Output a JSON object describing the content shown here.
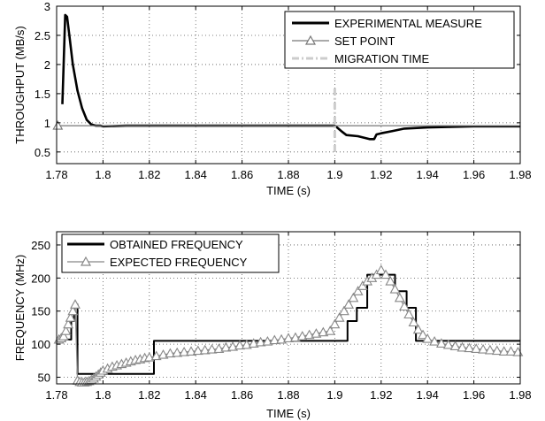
{
  "chart_data": [
    {
      "type": "line",
      "xlabel": "TIME (s)",
      "ylabel": "THROUGHPUT (MB/s)",
      "xlim": [
        1.78,
        1.98
      ],
      "ylim": [
        0.3,
        3
      ],
      "xticks": [
        1.78,
        1.8,
        1.82,
        1.84,
        1.86,
        1.88,
        1.9,
        1.92,
        1.94,
        1.96,
        1.98
      ],
      "xtick_labels": [
        "1.78",
        "1.8",
        "1.82",
        "1.84",
        "1.86",
        "1.88",
        "1.9",
        "1.92",
        "1.94",
        "1.96",
        "1.98"
      ],
      "yticks": [
        0.5,
        1,
        1.5,
        2,
        2.5,
        3
      ],
      "ytick_labels": [
        "0.5",
        "1",
        "1.5",
        "2",
        "2.5",
        "3"
      ],
      "grid": "dotted",
      "legend_position": "top-right",
      "series": [
        {
          "name": "EXPERIMENTAL MEASURE",
          "color": "#000000",
          "style": "solid-thick",
          "x": [
            1.7825,
            1.7837,
            1.7845,
            1.7855,
            1.787,
            1.789,
            1.791,
            1.793,
            1.795,
            1.797,
            1.799,
            1.8,
            1.81,
            1.82,
            1.84,
            1.86,
            1.88,
            1.9,
            1.901,
            1.903,
            1.905,
            1.91,
            1.915,
            1.917,
            1.918,
            1.92,
            1.925,
            1.93,
            1.94,
            1.95,
            1.96,
            1.98
          ],
          "y": [
            1.32,
            2.85,
            2.82,
            2.5,
            2.0,
            1.55,
            1.25,
            1.05,
            0.97,
            0.95,
            0.95,
            0.94,
            0.95,
            0.95,
            0.95,
            0.95,
            0.95,
            0.95,
            0.92,
            0.85,
            0.79,
            0.77,
            0.72,
            0.72,
            0.8,
            0.82,
            0.86,
            0.9,
            0.92,
            0.93,
            0.94,
            0.94
          ]
        },
        {
          "name": "SET POINT",
          "color": "#777777",
          "style": "solid-triangle-markers",
          "x": [
            1.78,
            1.98
          ],
          "y": [
            0.95,
            0.95
          ],
          "markers_x": [
            1.7805
          ]
        },
        {
          "name": "MIGRATION TIME",
          "color": "#cccccc",
          "style": "dash-dot",
          "x": [
            1.9,
            1.9
          ],
          "y": [
            0.5,
            1.6
          ]
        }
      ]
    },
    {
      "type": "line",
      "xlabel": "TIME (s)",
      "ylabel": "FREQUENCY (MHz)",
      "xlim": [
        1.78,
        1.98
      ],
      "ylim": [
        40,
        270
      ],
      "xticks": [
        1.78,
        1.8,
        1.82,
        1.84,
        1.86,
        1.88,
        1.9,
        1.92,
        1.94,
        1.96,
        1.98
      ],
      "xtick_labels": [
        "1.78",
        "1.8",
        "1.82",
        "1.84",
        "1.86",
        "1.88",
        "1.9",
        "1.92",
        "1.94",
        "1.96",
        "1.98"
      ],
      "yticks": [
        50,
        100,
        150,
        200,
        250
      ],
      "ytick_labels": [
        "50",
        "100",
        "150",
        "200",
        "250"
      ],
      "grid": "dotted",
      "legend_position": "top-left",
      "series": [
        {
          "name": "OBTAINED FREQUENCY",
          "color": "#000000",
          "style": "solid-step",
          "x": [
            1.78,
            1.783,
            1.783,
            1.7863,
            1.7863,
            1.7875,
            1.7875,
            1.789,
            1.789,
            1.822,
            1.822,
            1.9055,
            1.9055,
            1.9095,
            1.9095,
            1.914,
            1.914,
            1.926,
            1.926,
            1.931,
            1.931,
            1.935,
            1.935,
            1.98
          ],
          "y": [
            107,
            107,
            107,
            107,
            135,
            135,
            160,
            160,
            55,
            55,
            105,
            105,
            135,
            135,
            155,
            155,
            205,
            205,
            180,
            180,
            155,
            155,
            105,
            105
          ]
        },
        {
          "name": "EXPECTED FREQUENCY",
          "color": "#888888",
          "style": "solid-triangle-markers",
          "x": [
            1.781,
            1.782,
            1.783,
            1.784,
            1.785,
            1.786,
            1.787,
            1.788,
            1.789,
            1.79,
            1.791,
            1.792,
            1.793,
            1.794,
            1.795,
            1.796,
            1.797,
            1.798,
            1.799,
            1.8,
            1.802,
            1.804,
            1.806,
            1.808,
            1.81,
            1.812,
            1.814,
            1.816,
            1.818,
            1.82,
            1.823,
            1.826,
            1.829,
            1.832,
            1.835,
            1.838,
            1.841,
            1.844,
            1.847,
            1.85,
            1.853,
            1.856,
            1.859,
            1.862,
            1.865,
            1.868,
            1.871,
            1.874,
            1.877,
            1.88,
            1.883,
            1.886,
            1.889,
            1.892,
            1.895,
            1.898,
            1.9,
            1.902,
            1.904,
            1.906,
            1.908,
            1.91,
            1.912,
            1.914,
            1.916,
            1.918,
            1.92,
            1.922,
            1.924,
            1.926,
            1.928,
            1.93,
            1.932,
            1.934,
            1.936,
            1.938,
            1.94,
            1.943,
            1.946,
            1.949,
            1.952,
            1.955,
            1.958,
            1.961,
            1.964,
            1.967,
            1.97,
            1.973,
            1.976,
            1.979
          ],
          "y": [
            107,
            109,
            112,
            120,
            130,
            140,
            150,
            160,
            45,
            43,
            42,
            42,
            43,
            44,
            46,
            48,
            51,
            54,
            57,
            60,
            63,
            66,
            68,
            70,
            72,
            74,
            76,
            77,
            79,
            80,
            82,
            84,
            86,
            87,
            88,
            89,
            90,
            91,
            92,
            93,
            95,
            96,
            98,
            99,
            101,
            103,
            104,
            106,
            107,
            109,
            110,
            112,
            114,
            116,
            118,
            120,
            130,
            140,
            150,
            160,
            170,
            180,
            188,
            195,
            200,
            205,
            212,
            205,
            195,
            183,
            170,
            157,
            145,
            133,
            122,
            114,
            108,
            104,
            101,
            99,
            97,
            95,
            94,
            93,
            92,
            91,
            90,
            89,
            89,
            88
          ]
        }
      ]
    }
  ]
}
